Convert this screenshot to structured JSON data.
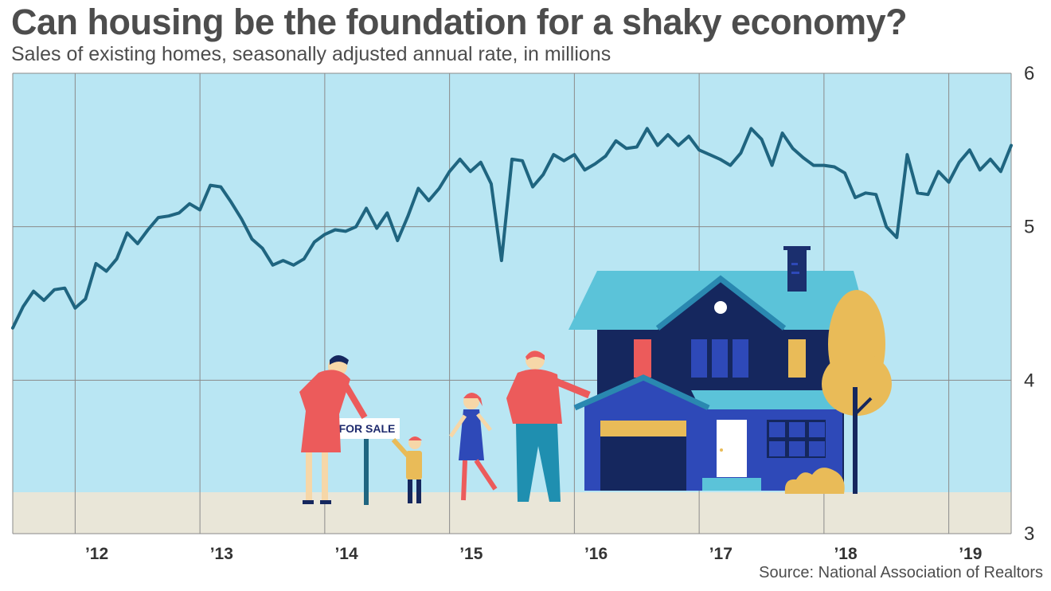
{
  "chart_data": {
    "type": "line",
    "title": "Can housing be the foundation for a shaky economy?",
    "subtitle": "Sales of existing homes, seasonally adjusted annual rate, in millions",
    "source": "Source: National Association of Realtors",
    "ylim": [
      3,
      6
    ],
    "y_ticks": [
      "6",
      "5",
      "4",
      "3"
    ],
    "x_tick_labels": [
      "’12",
      "’13",
      "’14",
      "’15",
      "’16",
      "’17",
      "’18",
      "’19"
    ],
    "xlim": [
      "2011-07",
      "2019-07"
    ],
    "grid": true,
    "series": [
      {
        "x": [
          "2011-07",
          "2011-08",
          "2011-09",
          "2011-10",
          "2011-11",
          "2011-12",
          "2012-01",
          "2012-02",
          "2012-03",
          "2012-04",
          "2012-05",
          "2012-06",
          "2012-07",
          "2012-08",
          "2012-09",
          "2012-10",
          "2012-11",
          "2012-12",
          "2013-01",
          "2013-02",
          "2013-03",
          "2013-04",
          "2013-05",
          "2013-06",
          "2013-07",
          "2013-08",
          "2013-09",
          "2013-10",
          "2013-11",
          "2013-12",
          "2014-01",
          "2014-02",
          "2014-03",
          "2014-04",
          "2014-05",
          "2014-06",
          "2014-07",
          "2014-08",
          "2014-09",
          "2014-10",
          "2014-11",
          "2014-12",
          "2015-01",
          "2015-02",
          "2015-03",
          "2015-04",
          "2015-05",
          "2015-06",
          "2015-07",
          "2015-08",
          "2015-09",
          "2015-10",
          "2015-11",
          "2015-12",
          "2016-01",
          "2016-02",
          "2016-03",
          "2016-04",
          "2016-05",
          "2016-06",
          "2016-07",
          "2016-08",
          "2016-09",
          "2016-10",
          "2016-11",
          "2016-12",
          "2017-01",
          "2017-02",
          "2017-03",
          "2017-04",
          "2017-05",
          "2017-06",
          "2017-07",
          "2017-08",
          "2017-09",
          "2017-10",
          "2017-11",
          "2017-12",
          "2018-01",
          "2018-02",
          "2018-03",
          "2018-04",
          "2018-05",
          "2018-06",
          "2018-07",
          "2018-08",
          "2018-09",
          "2018-10",
          "2018-11",
          "2018-12",
          "2019-01",
          "2019-02",
          "2019-03",
          "2019-04",
          "2019-05",
          "2019-06",
          "2019-07"
        ],
        "values": [
          4.34,
          4.48,
          4.58,
          4.52,
          4.59,
          4.6,
          4.47,
          4.53,
          4.76,
          4.71,
          4.79,
          4.96,
          4.89,
          4.98,
          5.06,
          5.07,
          5.09,
          5.15,
          5.11,
          5.27,
          5.26,
          5.16,
          5.05,
          4.92,
          4.86,
          4.75,
          4.78,
          4.75,
          4.79,
          4.9,
          4.95,
          4.98,
          4.97,
          5.0,
          5.12,
          4.99,
          5.09,
          4.91,
          5.07,
          5.25,
          5.17,
          5.25,
          5.36,
          5.44,
          5.36,
          5.42,
          5.28,
          4.78,
          5.44,
          5.43,
          5.26,
          5.34,
          5.47,
          5.43,
          5.47,
          5.37,
          5.41,
          5.46,
          5.56,
          5.51,
          5.52,
          5.64,
          5.53,
          5.6,
          5.53,
          5.59,
          5.5,
          5.47,
          5.44,
          5.4,
          5.48,
          5.64,
          5.57,
          5.4,
          5.61,
          5.51,
          5.45,
          5.4,
          5.4,
          5.39,
          5.35,
          5.19,
          5.22,
          5.21,
          5.0,
          4.93,
          5.47,
          5.22,
          5.21,
          5.36,
          5.29,
          5.42,
          5.5,
          5.37,
          5.44,
          5.36,
          5.53
        ]
      }
    ],
    "colors": {
      "plot_background": "#b9e6f3",
      "ground": "#e9e6d8",
      "line": "#1f6580",
      "grid": "#8a8a8a"
    },
    "illustration": {
      "sign_text": "FOR SALE"
    }
  }
}
